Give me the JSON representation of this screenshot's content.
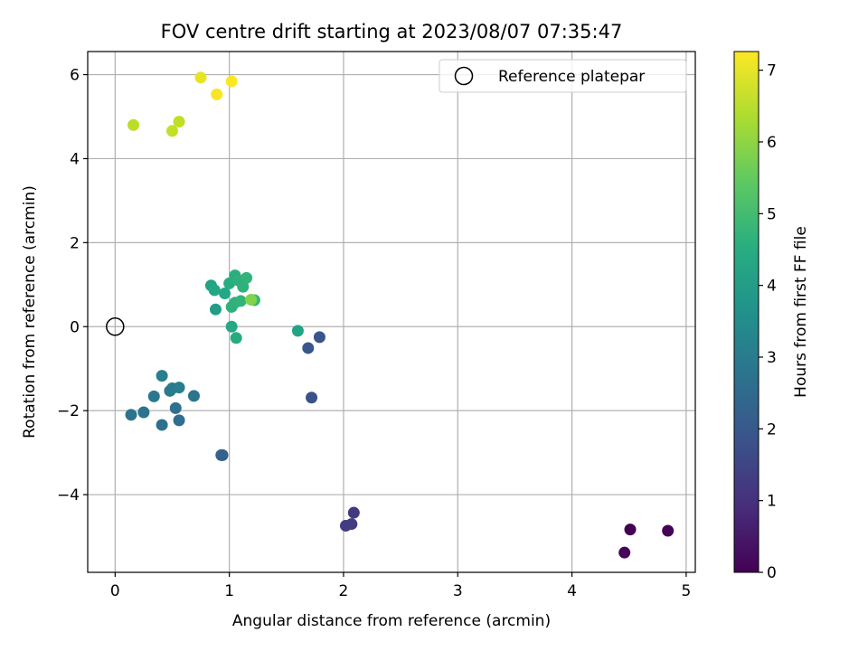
{
  "chart_data": {
    "type": "scatter",
    "title": "FOV centre drift starting at 2023/08/07 07:35:47",
    "xlabel": "Angular distance from reference (arcmin)",
    "ylabel": "Rotation from reference (arcmin)",
    "xlim": [
      -0.24,
      5.08
    ],
    "ylim": [
      -5.85,
      6.55
    ],
    "xticks": [
      0,
      1,
      2,
      3,
      4,
      5
    ],
    "yticks": [
      -4,
      -2,
      0,
      2,
      4,
      6
    ],
    "grid": true,
    "legend": {
      "label": "Reference platepar",
      "location": "upper right"
    },
    "reference_point": {
      "x": 0,
      "y": 0
    },
    "colorbar": {
      "label": "Hours from first FF file",
      "colormap": "viridis",
      "range": [
        0,
        7.26
      ],
      "ticks": [
        0,
        1,
        2,
        3,
        4,
        5,
        6,
        7
      ]
    },
    "points": [
      {
        "x": 4.51,
        "y": -4.83,
        "hours": 0.0
      },
      {
        "x": 4.84,
        "y": -4.86,
        "hours": 0.05
      },
      {
        "x": 4.46,
        "y": -5.38,
        "hours": 0.1
      },
      {
        "x": 2.09,
        "y": -4.43,
        "hours": 1.2
      },
      {
        "x": 2.07,
        "y": -4.7,
        "hours": 1.25
      },
      {
        "x": 2.02,
        "y": -4.74,
        "hours": 1.3
      },
      {
        "x": 1.72,
        "y": -1.69,
        "hours": 1.8
      },
      {
        "x": 1.79,
        "y": -0.25,
        "hours": 1.9
      },
      {
        "x": 1.69,
        "y": -0.51,
        "hours": 1.95
      },
      {
        "x": 0.94,
        "y": -3.06,
        "hours": 2.2
      },
      {
        "x": 0.93,
        "y": -3.06,
        "hours": 2.25
      },
      {
        "x": 0.56,
        "y": -2.23,
        "hours": 2.6
      },
      {
        "x": 0.41,
        "y": -2.34,
        "hours": 2.65
      },
      {
        "x": 0.53,
        "y": -1.94,
        "hours": 2.7
      },
      {
        "x": 0.25,
        "y": -2.04,
        "hours": 2.75
      },
      {
        "x": 0.14,
        "y": -2.1,
        "hours": 2.8
      },
      {
        "x": 0.69,
        "y": -1.65,
        "hours": 2.85
      },
      {
        "x": 0.34,
        "y": -1.66,
        "hours": 2.9
      },
      {
        "x": 0.48,
        "y": -1.53,
        "hours": 2.95
      },
      {
        "x": 0.5,
        "y": -1.47,
        "hours": 3.0
      },
      {
        "x": 0.56,
        "y": -1.45,
        "hours": 3.05
      },
      {
        "x": 0.41,
        "y": -1.17,
        "hours": 3.1
      },
      {
        "x": 1.6,
        "y": -0.1,
        "hours": 4.2
      },
      {
        "x": 1.02,
        "y": 0.0,
        "hours": 4.4
      },
      {
        "x": 1.06,
        "y": -0.27,
        "hours": 4.45
      },
      {
        "x": 0.88,
        "y": 0.41,
        "hours": 4.0
      },
      {
        "x": 0.84,
        "y": 0.98,
        "hours": 4.2
      },
      {
        "x": 0.87,
        "y": 0.87,
        "hours": 4.3
      },
      {
        "x": 0.96,
        "y": 0.79,
        "hours": 4.35
      },
      {
        "x": 1.0,
        "y": 1.03,
        "hours": 4.5
      },
      {
        "x": 1.05,
        "y": 1.22,
        "hours": 4.55
      },
      {
        "x": 1.08,
        "y": 1.1,
        "hours": 4.6
      },
      {
        "x": 1.12,
        "y": 0.95,
        "hours": 4.65
      },
      {
        "x": 1.15,
        "y": 1.16,
        "hours": 4.7
      },
      {
        "x": 1.02,
        "y": 0.47,
        "hours": 4.6
      },
      {
        "x": 1.05,
        "y": 0.57,
        "hours": 4.65
      },
      {
        "x": 1.1,
        "y": 0.61,
        "hours": 4.7
      },
      {
        "x": 1.22,
        "y": 0.63,
        "hours": 4.8
      },
      {
        "x": 1.19,
        "y": 0.64,
        "hours": 5.9
      },
      {
        "x": 0.16,
        "y": 4.8,
        "hours": 6.5
      },
      {
        "x": 0.5,
        "y": 4.66,
        "hours": 6.6
      },
      {
        "x": 0.56,
        "y": 4.88,
        "hours": 6.55
      },
      {
        "x": 0.75,
        "y": 5.93,
        "hours": 7.0
      },
      {
        "x": 0.89,
        "y": 5.53,
        "hours": 7.2
      },
      {
        "x": 1.02,
        "y": 5.84,
        "hours": 7.25
      }
    ]
  }
}
